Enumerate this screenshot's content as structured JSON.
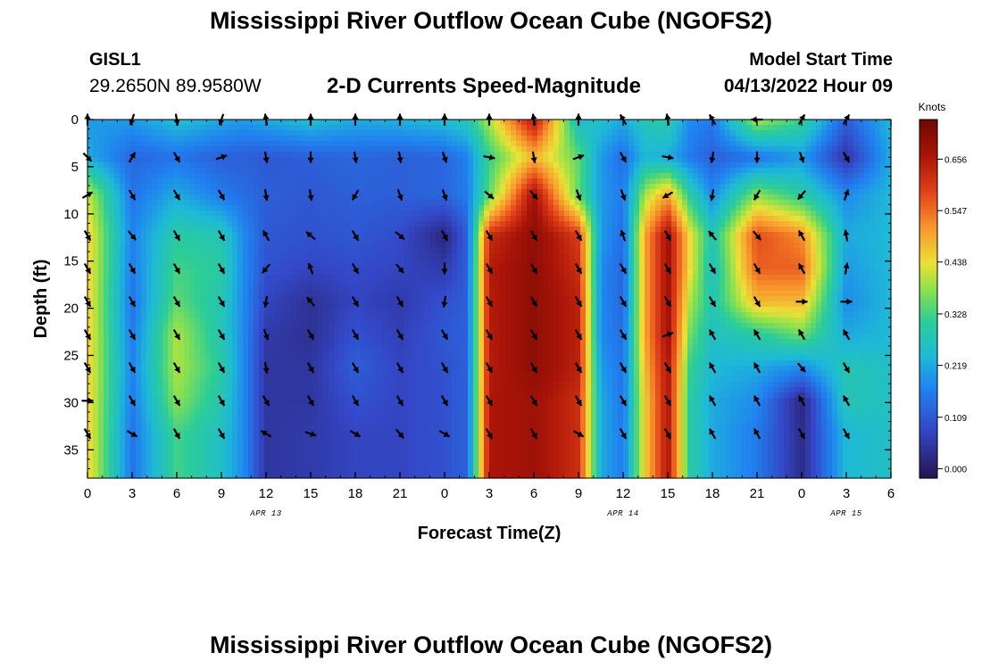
{
  "header": {
    "title": "Mississippi River Outflow Ocean Cube (NGOFS2)",
    "station_id": "GISL1",
    "station_location": "29.2650N  89.9580W",
    "plot_title": "2-D Currents Speed-Magnitude",
    "model_start_label": "Model Start Time",
    "model_start_value": "04/13/2022 Hour 09"
  },
  "footer": {
    "title": "Mississippi River Outflow Ocean Cube (NGOFS2)"
  },
  "chart_data": {
    "type": "heatmap",
    "title": "2-D Currents Speed-Magnitude",
    "xlabel": "Forecast Time(Z)",
    "ylabel": "Depth (ft)",
    "xlim": [
      0,
      54
    ],
    "ylim": [
      0,
      38
    ],
    "y_inverted": true,
    "x_tick_labels": [
      "0",
      "3",
      "6",
      "9",
      "12",
      "15",
      "18",
      "21",
      "0",
      "3",
      "6",
      "9",
      "12",
      "15",
      "18",
      "21",
      "0",
      "3",
      "6"
    ],
    "y_ticks": [
      0,
      5,
      10,
      15,
      20,
      25,
      30,
      35
    ],
    "date_labels": [
      {
        "x": 12,
        "text": "APR 13"
      },
      {
        "x": 36,
        "text": "APR 14"
      },
      {
        "x": 51,
        "text": "APR 15"
      }
    ],
    "colorbar": {
      "label": "Knots",
      "ticks": [
        0.0,
        0.109,
        0.219,
        0.328,
        0.438,
        0.547,
        0.656
      ],
      "tick_labels": [
        "0.000",
        "0.109",
        "0.219",
        "0.328",
        "0.438",
        "0.547",
        "0.656"
      ],
      "range": [
        -0.02,
        0.74
      ]
    },
    "arrow_x": [
      0,
      3,
      6,
      9,
      12,
      15,
      18,
      21,
      24,
      27,
      30,
      33,
      36,
      39,
      42,
      45,
      48,
      51
    ],
    "arrow_depths": [
      0,
      4,
      8,
      12.3,
      15.8,
      19.3,
      22.8,
      26.3,
      29.8,
      33.3
    ],
    "speed_columns": [
      {
        "x": 0,
        "speeds": [
          0.2,
          0.22,
          0.42,
          0.46,
          0.46,
          0.46,
          0.46,
          0.46,
          0.46,
          0.46
        ]
      },
      {
        "x": 3,
        "speeds": [
          0.2,
          0.13,
          0.15,
          0.17,
          0.16,
          0.15,
          0.16,
          0.17,
          0.16,
          0.15
        ]
      },
      {
        "x": 6,
        "speeds": [
          0.25,
          0.15,
          0.22,
          0.3,
          0.33,
          0.35,
          0.4,
          0.4,
          0.38,
          0.33
        ]
      },
      {
        "x": 9,
        "speeds": [
          0.22,
          0.12,
          0.16,
          0.28,
          0.3,
          0.28,
          0.28,
          0.3,
          0.28,
          0.26
        ]
      },
      {
        "x": 10.5,
        "speeds": [
          0.2,
          0.12,
          0.14,
          0.18,
          0.18,
          0.18,
          0.18,
          0.18,
          0.18,
          0.18
        ]
      },
      {
        "x": 12,
        "speeds": [
          0.22,
          0.11,
          0.12,
          0.11,
          0.1,
          0.08,
          0.06,
          0.05,
          0.05,
          0.05
        ]
      },
      {
        "x": 15,
        "speeds": [
          0.25,
          0.12,
          0.11,
          0.1,
          0.08,
          0.04,
          0.04,
          0.05,
          0.05,
          0.06
        ]
      },
      {
        "x": 18,
        "speeds": [
          0.22,
          0.13,
          0.12,
          0.11,
          0.09,
          0.08,
          0.1,
          0.12,
          0.1,
          0.08
        ]
      },
      {
        "x": 21,
        "speeds": [
          0.23,
          0.12,
          0.12,
          0.09,
          0.08,
          0.06,
          0.07,
          0.08,
          0.08,
          0.08
        ]
      },
      {
        "x": 24,
        "speeds": [
          0.25,
          0.13,
          0.13,
          0.02,
          0.06,
          0.1,
          0.11,
          0.1,
          0.1,
          0.1
        ]
      },
      {
        "x": 25.5,
        "speeds": [
          0.28,
          0.17,
          0.16,
          0.12,
          0.12,
          0.12,
          0.12,
          0.12,
          0.12,
          0.12
        ]
      },
      {
        "x": 27,
        "speeds": [
          0.4,
          0.32,
          0.35,
          0.62,
          0.65,
          0.65,
          0.65,
          0.65,
          0.66,
          0.66
        ]
      },
      {
        "x": 30,
        "speeds": [
          0.66,
          0.48,
          0.68,
          0.7,
          0.7,
          0.7,
          0.7,
          0.7,
          0.68,
          0.68
        ]
      },
      {
        "x": 33,
        "speeds": [
          0.25,
          0.35,
          0.35,
          0.6,
          0.62,
          0.64,
          0.64,
          0.64,
          0.62,
          0.62
        ]
      },
      {
        "x": 34.5,
        "speeds": [
          0.26,
          0.2,
          0.2,
          0.2,
          0.18,
          0.18,
          0.18,
          0.2,
          0.22,
          0.22
        ]
      },
      {
        "x": 36,
        "speeds": [
          0.22,
          0.14,
          0.16,
          0.14,
          0.13,
          0.13,
          0.14,
          0.15,
          0.15,
          0.16
        ]
      },
      {
        "x": 37.5,
        "speeds": [
          0.28,
          0.24,
          0.4,
          0.5,
          0.5,
          0.5,
          0.5,
          0.48,
          0.46,
          0.46
        ]
      },
      {
        "x": 39,
        "speeds": [
          0.3,
          0.22,
          0.5,
          0.68,
          0.68,
          0.68,
          0.68,
          0.66,
          0.66,
          0.66
        ]
      },
      {
        "x": 40.5,
        "speeds": [
          0.18,
          0.16,
          0.3,
          0.44,
          0.44,
          0.4,
          0.36,
          0.32,
          0.3,
          0.3
        ]
      },
      {
        "x": 42,
        "speeds": [
          0.16,
          0.12,
          0.18,
          0.28,
          0.26,
          0.28,
          0.26,
          0.24,
          0.22,
          0.22
        ]
      },
      {
        "x": 45,
        "speeds": [
          0.4,
          0.15,
          0.38,
          0.58,
          0.56,
          0.48,
          0.3,
          0.22,
          0.18,
          0.16
        ]
      },
      {
        "x": 48,
        "speeds": [
          0.32,
          0.2,
          0.3,
          0.52,
          0.56,
          0.48,
          0.36,
          0.18,
          0.02,
          0.03
        ]
      },
      {
        "x": 51,
        "speeds": [
          0.12,
          0.05,
          0.18,
          0.22,
          0.2,
          0.18,
          0.22,
          0.28,
          0.28,
          0.24
        ]
      },
      {
        "x": 54,
        "speeds": [
          0.24,
          0.22,
          0.24,
          0.24,
          0.24,
          0.24,
          0.24,
          0.26,
          0.26,
          0.26
        ]
      }
    ],
    "arrow_directions_deg": [
      [
        0,
        200,
        170,
        200,
        350,
        0,
        0,
        0,
        0,
        0,
        350,
        0,
        330,
        350,
        330,
        270,
        30,
        30
      ],
      [
        135,
        30,
        150,
        70,
        170,
        180,
        170,
        170,
        160,
        100,
        170,
        70,
        150,
        100,
        190,
        180,
        160,
        150
      ],
      [
        60,
        150,
        150,
        150,
        170,
        170,
        210,
        160,
        160,
        130,
        140,
        160,
        160,
        240,
        190,
        210,
        220,
        20
      ],
      [
        150,
        140,
        150,
        150,
        330,
        310,
        150,
        130,
        150,
        150,
        150,
        150,
        340,
        150,
        320,
        140,
        330,
        350
      ],
      [
        150,
        150,
        150,
        150,
        220,
        340,
        150,
        140,
        180,
        150,
        150,
        150,
        150,
        150,
        150,
        150,
        330,
        10
      ],
      [
        150,
        150,
        150,
        150,
        190,
        320,
        150,
        150,
        190,
        150,
        150,
        150,
        150,
        150,
        150,
        150,
        90,
        90
      ],
      [
        150,
        150,
        150,
        150,
        160,
        150,
        150,
        150,
        150,
        150,
        150,
        150,
        150,
        70,
        330,
        330,
        330,
        330
      ],
      [
        150,
        150,
        150,
        150,
        170,
        150,
        150,
        150,
        150,
        150,
        150,
        150,
        150,
        150,
        330,
        330,
        140,
        150
      ],
      [
        90,
        150,
        150,
        150,
        150,
        150,
        150,
        150,
        150,
        150,
        150,
        150,
        150,
        150,
        330,
        330,
        330,
        330
      ],
      [
        150,
        120,
        150,
        150,
        300,
        110,
        120,
        140,
        120,
        150,
        150,
        120,
        150,
        150,
        330,
        330,
        150,
        150
      ]
    ]
  }
}
